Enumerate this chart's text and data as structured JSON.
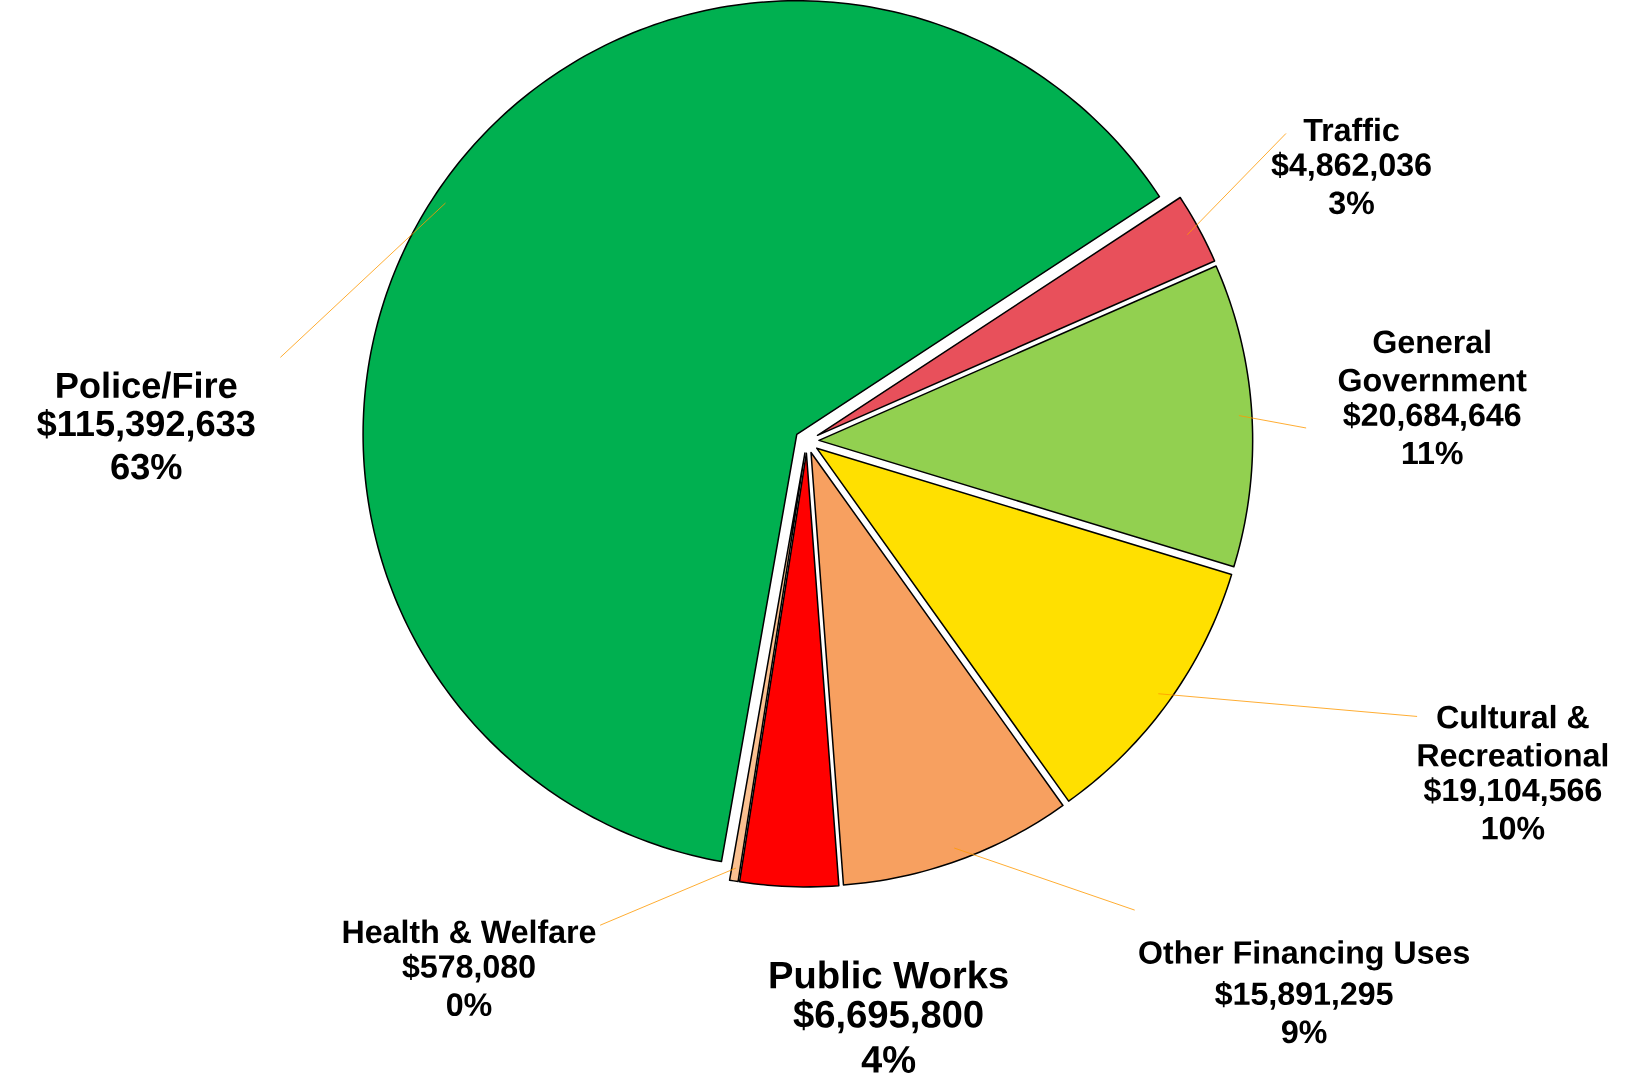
{
  "chart_data": {
    "type": "pie",
    "categories": [
      "Police/Fire",
      "Traffic",
      "General Government",
      "Cultural & Recreational",
      "Other Financing Uses",
      "Public Works",
      "Health & Welfare"
    ],
    "values": [
      115392633,
      4862036,
      20684646,
      19104566,
      15891295,
      6695800,
      578080
    ],
    "colors": [
      "#00b050",
      "#e8505b",
      "#92d050",
      "#ffe000",
      "#f7a060",
      "#ff0000",
      "#fac090"
    ],
    "value_labels": [
      "$115,392,633 63%",
      "$4,862,036 3%",
      "$20,684,646 11%",
      "$19,104,566 10%",
      "$15,891,295 9%",
      "$6,695,800 4%",
      "$578,080 0%"
    ]
  }
}
